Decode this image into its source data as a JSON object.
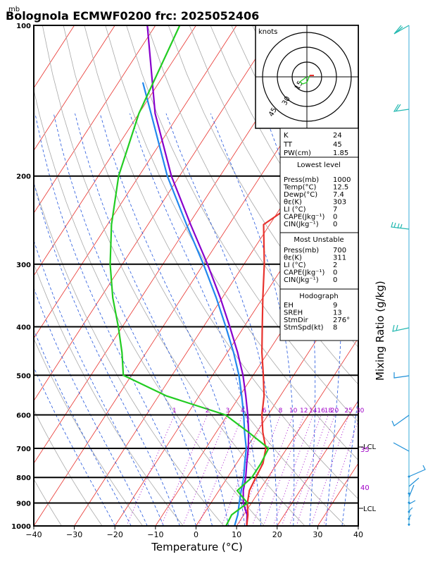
{
  "header": {
    "unit_mb": "mb",
    "title": "Bolognola ECMWF0200  frc: 2025052406"
  },
  "chart_data": {
    "type": "line",
    "title": "Bolognola ECMWF0200  frc: 2025052406",
    "xlabel": "Temperature (°C)",
    "ylabel_right": "Mixing Ratio  (g/kg)",
    "pressure_unit": "mb",
    "xlim": [
      -40,
      40
    ],
    "ylim": [
      1000,
      100
    ],
    "x_ticks": [
      "−40",
      "−30",
      "−20",
      "−10",
      "0",
      "10",
      "20",
      "30",
      "40"
    ],
    "y_ticks": [
      "100",
      "200",
      "300",
      "400",
      "500",
      "600",
      "700",
      "800",
      "900",
      "1000"
    ],
    "mixing_ratio_labels": [
      "1",
      "2",
      "3",
      "4",
      "6",
      "8",
      "10",
      "12",
      "14",
      "16",
      "18",
      "20",
      "25",
      "30"
    ],
    "side_labels": {
      "lcl_upper": "LCL",
      "value_35": "35",
      "value_40": "40",
      "lcl_lower": "LCL"
    },
    "series": [
      {
        "name": "Temperature",
        "color": "#e8322d",
        "points": [
          [
            1000,
            12.5
          ],
          [
            950,
            11.0
          ],
          [
            900,
            9.0
          ],
          [
            850,
            7.5
          ],
          [
            800,
            7.0
          ],
          [
            750,
            6.5
          ],
          [
            700,
            4.8
          ],
          [
            650,
            1.5
          ],
          [
            600,
            -1.5
          ],
          [
            550,
            -4.0
          ],
          [
            500,
            -7.5
          ],
          [
            450,
            -11.5
          ],
          [
            400,
            -15.5
          ],
          [
            350,
            -20.0
          ],
          [
            300,
            -25.0
          ],
          [
            250,
            -31.5
          ],
          [
            220,
            -26.0
          ],
          [
            200,
            -20.0
          ],
          [
            180,
            -14.0
          ],
          [
            150,
            -8.0
          ],
          [
            120,
            0.0
          ],
          [
            100,
            6.0
          ]
        ]
      },
      {
        "name": "Dew point",
        "color": "#22cc22",
        "points": [
          [
            1000,
            7.4
          ],
          [
            950,
            7.0
          ],
          [
            900,
            9.0
          ],
          [
            850,
            4.5
          ],
          [
            800,
            6.0
          ],
          [
            750,
            6.0
          ],
          [
            700,
            5.5
          ],
          [
            650,
            -2.0
          ],
          [
            600,
            -10.5
          ],
          [
            550,
            -28.0
          ],
          [
            500,
            -42.0
          ],
          [
            450,
            -46.0
          ],
          [
            400,
            -51.0
          ],
          [
            350,
            -57.0
          ],
          [
            300,
            -63.0
          ],
          [
            250,
            -69.0
          ],
          [
            200,
            -75.0
          ],
          [
            150,
            -80.0
          ],
          [
            100,
            -84.0
          ]
        ]
      },
      {
        "name": "Parcel",
        "color": "#8800cc",
        "points": [
          [
            1000,
            12.5
          ],
          [
            950,
            10.8
          ],
          [
            900,
            8.0
          ],
          [
            850,
            6.0
          ],
          [
            800,
            4.5
          ],
          [
            750,
            2.5
          ],
          [
            700,
            0.5
          ],
          [
            650,
            -2.0
          ],
          [
            600,
            -5.0
          ],
          [
            550,
            -8.5
          ],
          [
            500,
            -12.5
          ],
          [
            450,
            -17.5
          ],
          [
            400,
            -23.5
          ],
          [
            350,
            -30.5
          ],
          [
            300,
            -39.0
          ],
          [
            250,
            -49.5
          ],
          [
            200,
            -62.0
          ],
          [
            150,
            -76.0
          ],
          [
            100,
            -92.0
          ]
        ]
      },
      {
        "name": "Wet-bulb",
        "color": "#2288ee",
        "points": [
          [
            1000,
            9.5
          ],
          [
            950,
            8.5
          ],
          [
            900,
            7.0
          ],
          [
            850,
            5.5
          ],
          [
            800,
            4.0
          ],
          [
            750,
            2.0
          ],
          [
            700,
            0.0
          ],
          [
            650,
            -3.0
          ],
          [
            600,
            -6.0
          ],
          [
            550,
            -9.5
          ],
          [
            500,
            -13.5
          ],
          [
            450,
            -18.5
          ],
          [
            400,
            -24.5
          ],
          [
            350,
            -31.5
          ],
          [
            300,
            -40.0
          ],
          [
            250,
            -50.5
          ],
          [
            200,
            -63.0
          ],
          [
            150,
            -77.0
          ],
          [
            130,
            -84.0
          ]
        ]
      }
    ],
    "hodograph": {
      "label": "knots",
      "rings": [
        "15",
        "30",
        "45"
      ]
    },
    "indices": {
      "K": "24",
      "TT": "45",
      "PW_label": "PW(cm)",
      "PW": "1.85",
      "lowest_level": {
        "title": "Lowest level",
        "rows": [
          [
            "Press(mb)",
            "1000"
          ],
          [
            "Temp(°C)",
            "12.5"
          ],
          [
            "Dewp(°C)",
            "7.4"
          ],
          [
            "θε(K)",
            "303"
          ],
          [
            "LI (°C)",
            "7"
          ],
          [
            "CAPE(Jkg⁻¹)",
            "0"
          ],
          [
            "CIN(Jkg⁻¹)",
            "0"
          ]
        ]
      },
      "most_unstable": {
        "title": "Most Unstable",
        "rows": [
          [
            "Press(mb)",
            "700"
          ],
          [
            "θε(K)",
            "311"
          ],
          [
            "LI (°C)",
            "2"
          ],
          [
            "CAPE(Jkg⁻¹)",
            "0"
          ],
          [
            "CIN(Jkg⁻¹)",
            "0"
          ]
        ]
      },
      "hodograph_box": {
        "title": "Hodograph",
        "rows": [
          [
            "EH",
            "9"
          ],
          [
            "SREH",
            "13"
          ],
          [
            "StmDir",
            "276°"
          ],
          [
            "StmSpd(kt)",
            "8"
          ]
        ]
      }
    }
  }
}
